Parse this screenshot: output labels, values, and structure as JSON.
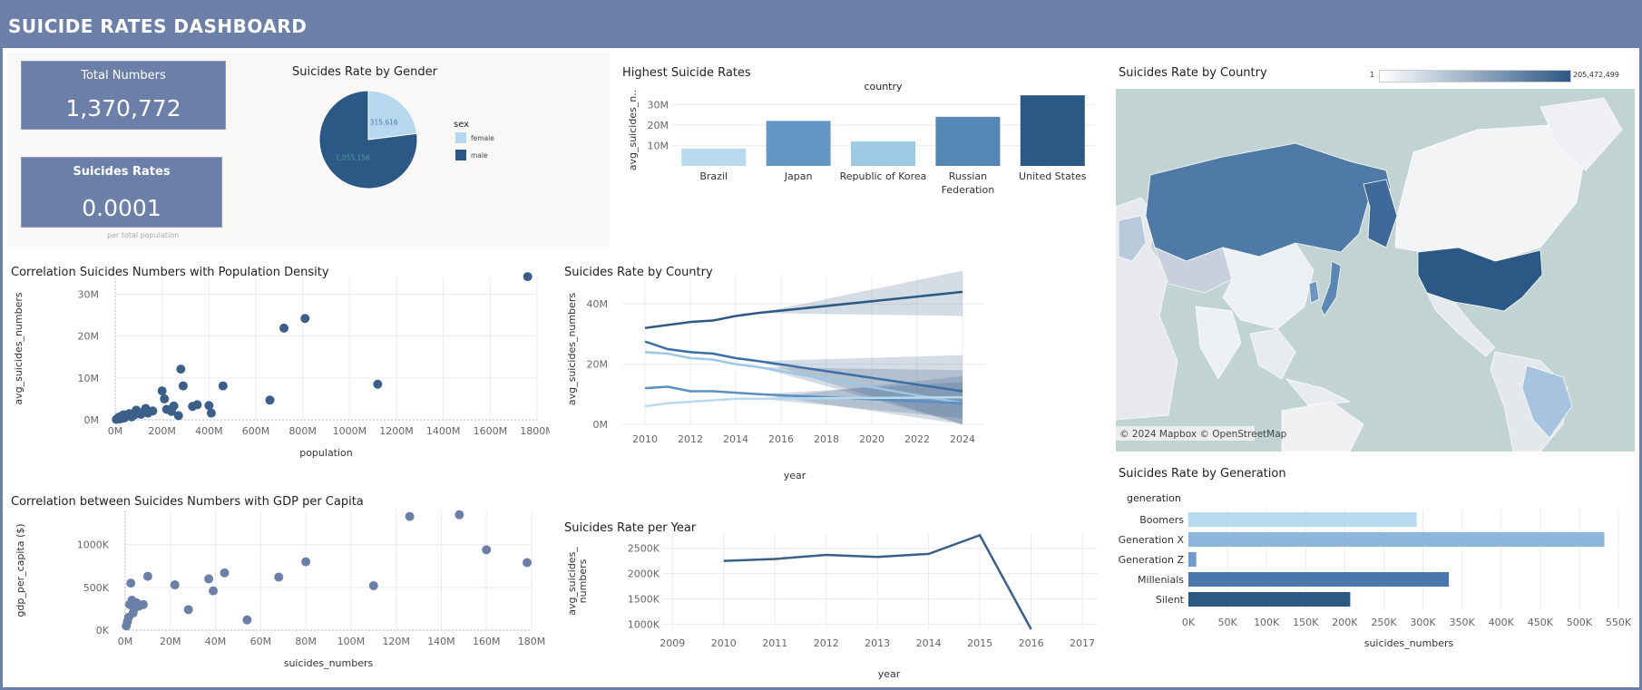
{
  "header": {
    "title": "SUICIDE RATES DASHBOARD"
  },
  "kpis": {
    "total": {
      "label": "Total Numbers",
      "value": "1,370,772"
    },
    "rate": {
      "label": "Suicides Rates",
      "value": "0.0001",
      "note": "per total population"
    }
  },
  "gender": {
    "title": "Suicides Rate by Gender",
    "legend_title": "sex",
    "colors": {
      "female": "#b7d9f0",
      "male": "#2c5885"
    },
    "chart_data": {
      "type": "pie",
      "labels": [
        "female",
        "male"
      ],
      "values": [
        315616,
        1055156
      ],
      "data_labels": [
        "315,616",
        "1,055,156"
      ],
      "legend_title": "sex",
      "legend_position": "right"
    }
  },
  "highest": {
    "title": "Highest Suicide Rates",
    "chart_data": {
      "type": "bar",
      "title": "country",
      "categories": [
        "Brazil",
        "Japan",
        "Republic of Korea",
        "Russian Federation",
        "United States"
      ],
      "category_lines": [
        [
          "Brazil"
        ],
        [
          "Japan"
        ],
        [
          "Republic of Korea"
        ],
        [
          "Russian",
          "Federation"
        ],
        [
          "United States"
        ]
      ],
      "values": [
        8500000,
        22000000,
        12000000,
        24000000,
        34500000
      ],
      "colors": [
        "#b8daf0",
        "#6497c4",
        "#9ecae6",
        "#5587b5",
        "#2c5885"
      ],
      "ylabel": "avg_suicides_n..",
      "yticks": [
        10000000,
        20000000,
        30000000
      ],
      "ytick_labels": [
        "10M",
        "20M",
        "30M"
      ],
      "ylim": [
        0,
        35000000
      ]
    }
  },
  "map": {
    "title": "Suicides Rate by Country",
    "legend_min": "1",
    "legend_max": "205,472,499",
    "attribution": "© 2024 Mapbox © OpenStreetMap"
  },
  "scatter_pop": {
    "title": "Correlation Suicides Numbers with Population Density",
    "chart_data": {
      "type": "scatter",
      "xlabel": "population",
      "ylabel": "avg_suicides_numbers",
      "xlim": [
        0,
        1800
      ],
      "ylim": [
        0,
        34000000
      ],
      "xticks": [
        0,
        200,
        400,
        600,
        800,
        1000,
        1200,
        1400,
        1600,
        1800
      ],
      "xtick_labels": [
        "0M",
        "200M",
        "400M",
        "600M",
        "800M",
        "1000M",
        "1200M",
        "1400M",
        "1600M",
        "1800M"
      ],
      "yticks": [
        0,
        10000000,
        20000000,
        30000000
      ],
      "ytick_labels": [
        "0M",
        "10M",
        "20M",
        "30M"
      ],
      "x": [
        5,
        10,
        15,
        20,
        25,
        30,
        35,
        40,
        50,
        60,
        70,
        80,
        90,
        100,
        110,
        130,
        140,
        160,
        200,
        210,
        220,
        240,
        250,
        270,
        280,
        290,
        330,
        350,
        400,
        410,
        460,
        660,
        720,
        810,
        1120,
        1760
      ],
      "y": [
        100000,
        300000,
        600000,
        200000,
        800000,
        400000,
        1200000,
        500000,
        900000,
        1500000,
        700000,
        1100000,
        2300000,
        1800000,
        1300000,
        2700000,
        1600000,
        2100000,
        6900000,
        5000000,
        2500000,
        2000000,
        3300000,
        1000000,
        12100000,
        8100000,
        3200000,
        3600000,
        3400000,
        1600000,
        8100000,
        4700000,
        21900000,
        24200000,
        8500000,
        34200000
      ],
      "color": "#3b5f88"
    }
  },
  "scatter_gdp": {
    "title": "Correlation between Suicides Numbers with GDP per Capita",
    "chart_data": {
      "type": "scatter",
      "xlabel": "suicides_numbers",
      "ylabel": "gdp_per_capita ($)",
      "xlim": [
        0,
        180
      ],
      "ylim": [
        0,
        1400000
      ],
      "xticks": [
        0,
        20,
        40,
        60,
        80,
        100,
        120,
        140,
        160,
        180
      ],
      "xtick_labels": [
        "0M",
        "20M",
        "40M",
        "60M",
        "80M",
        "100M",
        "120M",
        "140M",
        "160M",
        "180M"
      ],
      "yticks": [
        0,
        500000,
        1000000
      ],
      "ytick_labels": [
        "0K",
        "500K",
        "1000K"
      ],
      "x": [
        0.5,
        1,
        1.5,
        2,
        2.5,
        3,
        3.5,
        4,
        5,
        6,
        8,
        10,
        22,
        28,
        37,
        39,
        44,
        54,
        68,
        80,
        110,
        126,
        148,
        160,
        178
      ],
      "y": [
        50000,
        100000,
        150000,
        300000,
        550000,
        350000,
        200000,
        250000,
        320000,
        280000,
        300000,
        630000,
        530000,
        240000,
        600000,
        460000,
        670000,
        120000,
        620000,
        800000,
        520000,
        1330000,
        1350000,
        940000,
        790000
      ],
      "color": "#6c7fa8"
    }
  },
  "trend": {
    "title": "Suicides Rate by Country",
    "chart_data": {
      "type": "line",
      "xlabel": "year",
      "ylabel": "avg_suicides_numbers",
      "xlim": [
        2009,
        2025
      ],
      "ylim": [
        0,
        50000000
      ],
      "xticks": [
        2010,
        2012,
        2014,
        2016,
        2018,
        2020,
        2022,
        2024
      ],
      "yticks": [
        0,
        20000000,
        40000000
      ],
      "ytick_labels": [
        "0M",
        "20M",
        "40M"
      ],
      "forecast_start": 2015,
      "series": [
        {
          "color": "#2c5885",
          "x": [
            2010,
            2011,
            2012,
            2013,
            2014,
            2015,
            2024
          ],
          "y": [
            32000000,
            33000000,
            34000000,
            34500000,
            36000000,
            37000000,
            44000000
          ],
          "band_lo": [
            37000000,
            36000000
          ],
          "band_hi": [
            37000000,
            51000000
          ]
        },
        {
          "color": "#3b6ea4",
          "x": [
            2010,
            2011,
            2012,
            2013,
            2014,
            2015,
            2024
          ],
          "y": [
            27500000,
            25000000,
            24000000,
            23500000,
            22000000,
            21000000,
            11000000
          ],
          "band_lo": [
            21000000,
            0
          ],
          "band_hi": [
            21000000,
            23000000
          ]
        },
        {
          "color": "#9ec6e6",
          "x": [
            2010,
            2011,
            2012,
            2013,
            2014,
            2015,
            2024
          ],
          "y": [
            24000000,
            23500000,
            22000000,
            21500000,
            20000000,
            19000000,
            7000000
          ],
          "band_lo": [
            19000000,
            0
          ],
          "band_hi": [
            19000000,
            18000000
          ]
        },
        {
          "color": "#5b8fc2",
          "x": [
            2010,
            2011,
            2012,
            2013,
            2014,
            2015,
            2024
          ],
          "y": [
            12000000,
            12500000,
            11000000,
            11000000,
            10500000,
            10000000,
            7000000
          ],
          "band_lo": [
            10000000,
            0
          ],
          "band_hi": [
            10000000,
            14000000
          ]
        },
        {
          "color": "#b8daf0",
          "x": [
            2010,
            2011,
            2012,
            2013,
            2014,
            2015,
            2024
          ],
          "y": [
            6000000,
            7000000,
            7500000,
            8000000,
            8500000,
            8500000,
            9000000
          ],
          "band_lo": [
            8500000,
            2000000
          ],
          "band_hi": [
            8500000,
            16000000
          ]
        }
      ]
    }
  },
  "per_year": {
    "title": "Suicides Rate per Year",
    "chart_data": {
      "type": "line",
      "xlabel": "year",
      "ylabel_lines": [
        "avg_suicides_",
        "numbers"
      ],
      "xlim": [
        2008.8,
        2017.3
      ],
      "ylim": [
        900000,
        2800000
      ],
      "xticks": [
        2009,
        2010,
        2011,
        2012,
        2013,
        2014,
        2015,
        2016,
        2017
      ],
      "yticks": [
        1000000,
        1500000,
        2000000,
        2500000
      ],
      "ytick_labels": [
        "1000K",
        "1500K",
        "2000K",
        "2500K"
      ],
      "x": [
        2010,
        2011,
        2012,
        2013,
        2014,
        2015,
        2016
      ],
      "y": [
        2250000,
        2290000,
        2370000,
        2330000,
        2390000,
        2760000,
        900000
      ],
      "color": "#3b5f88"
    }
  },
  "generation": {
    "title": "Suicides Rate by Generation",
    "chart_data": {
      "type": "bar",
      "orientation": "horizontal",
      "legend_title": "generation",
      "categories": [
        "Boomers",
        "Generation X",
        "Generation Z",
        "Millenials",
        "Silent"
      ],
      "values": [
        292000,
        532000,
        10000,
        333000,
        207000
      ],
      "colors": [
        "#b8daf0",
        "#8db6dc",
        "#6e9ccb",
        "#4a78ab",
        "#2c5885"
      ],
      "xlabel": "suicides_numbers",
      "xlim": [
        0,
        550000
      ],
      "xticks": [
        0,
        50000,
        100000,
        150000,
        200000,
        250000,
        300000,
        350000,
        400000,
        450000,
        500000,
        550000
      ],
      "xtick_labels": [
        "0K",
        "50K",
        "100K",
        "150K",
        "200K",
        "250K",
        "300K",
        "350K",
        "400K",
        "450K",
        "500K",
        "550K"
      ]
    }
  }
}
